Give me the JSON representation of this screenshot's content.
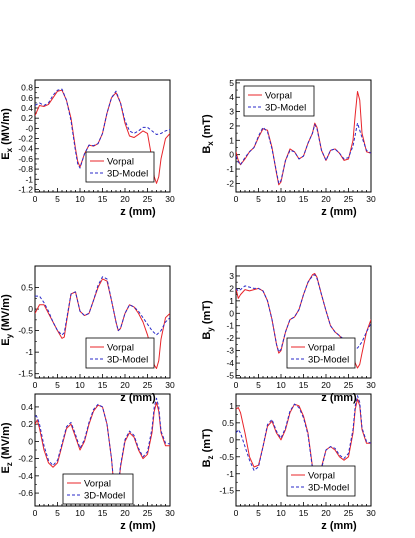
{
  "legend": {
    "series": [
      {
        "name": "Vorpal",
        "color": "#e8242a",
        "dash": "solid"
      },
      {
        "name": "3D-Model",
        "color": "#2a2ac8",
        "dash": "dashed"
      }
    ]
  },
  "chart_data": [
    {
      "type": "line",
      "xlabel": "z (mm)",
      "ylabel": "E_x (MV/m)",
      "ylabel_main": "E",
      "ylabel_sub": "x",
      "ylabel_unit": " (MV/m)",
      "xlim": [
        0,
        30
      ],
      "ylim": [
        -1.25,
        0.95
      ],
      "xticks": [
        0,
        5,
        10,
        15,
        20,
        25,
        30
      ],
      "yticks": [
        -1.2,
        -1,
        -0.8,
        -0.6,
        -0.4,
        -0.2,
        0,
        0.2,
        0.4,
        0.6,
        0.8
      ],
      "ytick_labels": [
        "-1.2",
        "-1",
        "-0.8",
        "-0.6",
        "-0.4",
        "-0.2",
        "-0",
        "0.2",
        "0.4",
        "0.6",
        "0.8"
      ],
      "legend_position": "bottom-right",
      "series": [
        {
          "name": "Vorpal",
          "x": [
            0,
            1,
            2,
            3,
            4,
            5,
            6,
            7,
            8,
            9,
            9.5,
            10,
            11,
            12,
            13,
            14,
            15,
            16,
            17,
            18,
            19,
            20,
            21,
            22,
            23,
            24,
            25,
            26,
            26.5,
            27,
            27.5,
            28,
            29,
            30
          ],
          "y": [
            0.25,
            0.45,
            0.43,
            0.47,
            0.6,
            0.73,
            0.75,
            0.55,
            0.2,
            -0.4,
            -0.65,
            -0.76,
            -0.5,
            -0.33,
            -0.35,
            -0.3,
            -0.1,
            0.3,
            0.6,
            0.7,
            0.5,
            0.1,
            -0.15,
            -0.18,
            -0.12,
            -0.05,
            -0.1,
            -0.6,
            -0.95,
            -1.08,
            -0.95,
            -0.6,
            -0.2,
            -0.1
          ]
        },
        {
          "name": "3D-Model",
          "x": [
            0,
            1,
            2,
            3,
            4,
            5,
            6,
            7,
            8,
            9,
            9.5,
            10,
            11,
            12,
            13,
            14,
            15,
            16,
            17,
            18,
            19,
            20,
            21,
            22,
            23,
            24,
            25,
            26,
            27,
            28,
            29,
            30
          ],
          "y": [
            0.45,
            0.5,
            0.45,
            0.5,
            0.65,
            0.75,
            0.77,
            0.55,
            0.15,
            -0.45,
            -0.7,
            -0.78,
            -0.5,
            -0.33,
            -0.34,
            -0.3,
            -0.1,
            0.3,
            0.6,
            0.73,
            0.5,
            0.15,
            -0.05,
            -0.1,
            -0.05,
            0.02,
            0.02,
            -0.05,
            -0.12,
            -0.1,
            -0.05,
            -0.02
          ]
        }
      ]
    },
    {
      "type": "line",
      "xlabel": "z (mm)",
      "ylabel": "B_x (mT)",
      "ylabel_main": "B",
      "ylabel_sub": "x",
      "ylabel_unit": " (mT)",
      "xlim": [
        0,
        30
      ],
      "ylim": [
        -2.6,
        5.2
      ],
      "xticks": [
        0,
        5,
        10,
        15,
        20,
        25,
        30
      ],
      "yticks": [
        -2,
        -1,
        0,
        1,
        2,
        3,
        4,
        5
      ],
      "ytick_labels": [
        "-2",
        "-1",
        "0",
        "1",
        "2",
        "3",
        "4",
        "5"
      ],
      "legend_position": "top-left",
      "series": [
        {
          "name": "Vorpal",
          "x": [
            0,
            0.5,
            1,
            2,
            3,
            4,
            5,
            6,
            7,
            8,
            9,
            9.5,
            10,
            11,
            12,
            13,
            14,
            15,
            16,
            17,
            17.5,
            18,
            19,
            20,
            21,
            22,
            23,
            24,
            25,
            26,
            26.5,
            27,
            27.5,
            28,
            29,
            30
          ],
          "y": [
            0.2,
            -0.4,
            -0.7,
            -0.3,
            0.2,
            0.5,
            1.2,
            1.8,
            1.7,
            0.5,
            -1.3,
            -2.1,
            -1.9,
            -0.4,
            0.4,
            0.2,
            -0.3,
            -0.1,
            0.8,
            1.5,
            2.2,
            1.9,
            0.3,
            -0.4,
            0.3,
            0.4,
            0.1,
            -0.4,
            -0.3,
            1.0,
            2.8,
            4.4,
            3.8,
            1.5,
            0.2,
            0.1
          ]
        },
        {
          "name": "3D-Model",
          "x": [
            0,
            0.5,
            1,
            2,
            3,
            4,
            5,
            6,
            7,
            8,
            9,
            9.5,
            10,
            11,
            12,
            13,
            14,
            15,
            16,
            17,
            17.5,
            18,
            19,
            20,
            21,
            22,
            23,
            24,
            25,
            26,
            27,
            28,
            29,
            30
          ],
          "y": [
            -0.1,
            -0.5,
            -0.7,
            -0.2,
            0.2,
            0.5,
            1.3,
            1.9,
            1.6,
            0.4,
            -1.2,
            -2.0,
            -1.8,
            -0.4,
            0.3,
            0.2,
            -0.3,
            -0.1,
            0.8,
            1.5,
            2.1,
            1.8,
            0.3,
            -0.4,
            0.3,
            0.4,
            0.1,
            -0.3,
            -0.2,
            0.6,
            2.2,
            1.2,
            0.3,
            0.1
          ]
        }
      ]
    },
    {
      "type": "line",
      "xlabel": "z (mm)",
      "ylabel": "E_y (MV/m)",
      "ylabel_main": "E",
      "ylabel_sub": "y",
      "ylabel_unit": " (MV/m)",
      "xlim": [
        0,
        30
      ],
      "ylim": [
        -1.6,
        1.0
      ],
      "xticks": [
        0,
        5,
        10,
        15,
        20,
        25,
        30
      ],
      "yticks": [
        -1.5,
        -1,
        -0.5,
        0,
        0.5
      ],
      "ytick_labels": [
        "-1.5",
        "-1",
        "-0.5",
        "0",
        "0.5"
      ],
      "legend_position": "bottom-right",
      "series": [
        {
          "name": "Vorpal",
          "x": [
            0,
            1,
            2,
            3,
            4,
            5,
            6,
            6.5,
            7,
            8,
            9,
            10,
            11,
            12,
            13,
            14,
            15,
            16,
            17,
            18,
            18.5,
            19,
            20,
            21,
            22,
            23,
            24,
            25,
            26,
            26.5,
            27,
            27.5,
            28,
            29,
            30
          ],
          "y": [
            -0.1,
            0.1,
            0.1,
            -0.1,
            -0.3,
            -0.5,
            -0.68,
            -0.65,
            -0.3,
            0.35,
            0.4,
            -0.05,
            -0.15,
            -0.1,
            0.2,
            0.5,
            0.7,
            0.65,
            0.2,
            -0.3,
            -0.5,
            -0.45,
            -0.1,
            0.1,
            0.05,
            -0.1,
            -0.3,
            -0.6,
            -1.0,
            -1.3,
            -1.38,
            -1.2,
            -0.7,
            -0.2,
            -0.1
          ]
        },
        {
          "name": "3D-Model",
          "x": [
            0,
            1,
            2,
            3,
            4,
            5,
            6,
            6.5,
            7,
            8,
            9,
            10,
            11,
            12,
            13,
            14,
            15,
            16,
            17,
            18,
            18.5,
            19,
            20,
            21,
            22,
            23,
            24,
            25,
            26,
            27,
            28,
            29,
            30
          ],
          "y": [
            0.3,
            0.3,
            0.15,
            -0.05,
            -0.3,
            -0.5,
            -0.6,
            -0.55,
            -0.25,
            0.35,
            0.4,
            -0.05,
            -0.15,
            -0.1,
            0.2,
            0.55,
            0.75,
            0.7,
            0.2,
            -0.3,
            -0.5,
            -0.45,
            -0.1,
            0.1,
            0.05,
            -0.05,
            -0.2,
            -0.35,
            -0.5,
            -0.6,
            -0.5,
            -0.3,
            -0.2
          ]
        }
      ]
    },
    {
      "type": "line",
      "xlabel": "z (mm)",
      "ylabel": "B_y (mT)",
      "ylabel_main": "B",
      "ylabel_sub": "y",
      "ylabel_unit": " (mT)",
      "xlim": [
        0,
        30
      ],
      "ylim": [
        -5.2,
        3.8
      ],
      "xticks": [
        0,
        5,
        10,
        15,
        20,
        25,
        30
      ],
      "yticks": [
        -5,
        -4,
        -3,
        -2,
        -1,
        0,
        1,
        2,
        3
      ],
      "ytick_labels": [
        "-5",
        "-4",
        "-3",
        "-2",
        "-1",
        "0",
        "1",
        "2",
        "3"
      ],
      "legend_position": "bottom-right",
      "series": [
        {
          "name": "Vorpal",
          "x": [
            0,
            0.5,
            1,
            2,
            3,
            4,
            5,
            6,
            7,
            8,
            9,
            9.5,
            10,
            11,
            12,
            13,
            14,
            15,
            16,
            17,
            17.5,
            18,
            19,
            20,
            21,
            22,
            23,
            24,
            25,
            26,
            26.5,
            27,
            27.5,
            28,
            29,
            30
          ],
          "y": [
            2.0,
            1.2,
            1.5,
            1.9,
            1.8,
            1.9,
            2.0,
            1.8,
            1.0,
            -0.5,
            -2.5,
            -3.2,
            -3.0,
            -1.5,
            -0.5,
            -0.3,
            0.3,
            1.5,
            2.5,
            3.1,
            3.2,
            2.9,
            1.5,
            0.2,
            -1.0,
            -1.5,
            -1.8,
            -2.3,
            -2.7,
            -3.4,
            -4.0,
            -4.4,
            -4.1,
            -3.2,
            -1.5,
            -0.5
          ]
        },
        {
          "name": "3D-Model",
          "x": [
            0,
            0.5,
            1,
            2,
            3,
            4,
            5,
            6,
            7,
            8,
            9,
            9.5,
            10,
            11,
            12,
            13,
            14,
            15,
            16,
            17,
            17.5,
            18,
            19,
            20,
            21,
            22,
            23,
            24,
            25,
            26,
            27,
            28,
            29,
            30
          ],
          "y": [
            2.0,
            1.8,
            1.9,
            2.2,
            2.1,
            2.0,
            2.0,
            1.8,
            1.0,
            -0.5,
            -2.5,
            -3.1,
            -2.9,
            -1.5,
            -0.5,
            -0.3,
            0.3,
            1.5,
            2.5,
            3.0,
            3.1,
            2.8,
            1.5,
            0.2,
            -1.0,
            -1.5,
            -1.8,
            -2.1,
            -2.4,
            -2.7,
            -2.8,
            -2.3,
            -1.5,
            -0.8
          ]
        }
      ]
    },
    {
      "type": "line",
      "xlabel": "z (mm)",
      "ylabel": "E_z (MV/m)",
      "ylabel_main": "E",
      "ylabel_sub": "z",
      "ylabel_unit": " (MV/m)",
      "xlim": [
        0,
        30
      ],
      "ylim": [
        -0.75,
        0.55
      ],
      "xticks": [
        0,
        5,
        10,
        15,
        20,
        25,
        30
      ],
      "yticks": [
        -0.6,
        -0.4,
        -0.2,
        0,
        0.2,
        0.4
      ],
      "ytick_labels": [
        "-0.6",
        "-0.4",
        "-0.2",
        "0",
        "0.2",
        "0.4"
      ],
      "legend_position": "bottom-center",
      "series": [
        {
          "name": "Vorpal",
          "x": [
            0,
            0.5,
            1,
            2,
            3,
            4,
            5,
            6,
            7,
            8,
            9,
            10,
            11,
            12,
            13,
            14,
            15,
            16,
            17,
            17.5,
            18,
            18.5,
            19,
            20,
            21,
            22,
            23,
            24,
            25,
            26,
            26.5,
            27,
            27.5,
            28,
            29,
            30
          ],
          "y": [
            0.2,
            0.25,
            0.15,
            -0.1,
            -0.25,
            -0.3,
            -0.25,
            -0.05,
            0.15,
            0.2,
            0.05,
            -0.1,
            0.0,
            0.2,
            0.35,
            0.42,
            0.4,
            0.2,
            -0.2,
            -0.5,
            -0.6,
            -0.55,
            -0.3,
            0.0,
            0.1,
            0.05,
            -0.1,
            -0.2,
            -0.15,
            0.1,
            0.35,
            0.45,
            0.35,
            0.1,
            -0.05,
            -0.05
          ]
        },
        {
          "name": "3D-Model",
          "x": [
            0,
            0.5,
            1,
            2,
            3,
            4,
            5,
            6,
            7,
            8,
            9,
            10,
            11,
            12,
            13,
            14,
            15,
            16,
            17,
            17.5,
            18,
            18.5,
            19,
            20,
            21,
            22,
            23,
            24,
            25,
            26,
            26.5,
            27,
            27.5,
            28,
            29,
            30
          ],
          "y": [
            0.3,
            0.28,
            0.2,
            -0.05,
            -0.22,
            -0.28,
            -0.22,
            -0.03,
            0.17,
            0.22,
            0.08,
            -0.08,
            0.02,
            0.22,
            0.37,
            0.43,
            0.4,
            0.2,
            -0.2,
            -0.48,
            -0.58,
            -0.52,
            -0.28,
            0.02,
            0.12,
            0.07,
            -0.08,
            -0.18,
            -0.12,
            0.15,
            0.4,
            0.5,
            0.4,
            0.12,
            -0.02,
            -0.03
          ]
        }
      ]
    },
    {
      "type": "line",
      "xlabel": "z (mm)",
      "ylabel": "B_z (mT)",
      "ylabel_main": "B",
      "ylabel_sub": "z",
      "ylabel_unit": " (mT)",
      "xlim": [
        0,
        30
      ],
      "ylim": [
        -1.95,
        1.35
      ],
      "xticks": [
        0,
        5,
        10,
        15,
        20,
        25,
        30
      ],
      "yticks": [
        -1.5,
        -1,
        -0.5,
        0,
        0.5,
        1
      ],
      "ytick_labels": [
        "-1.5",
        "-1",
        "-0.5",
        "0",
        "0.5",
        "1"
      ],
      "legend_position": "bottom-right",
      "series": [
        {
          "name": "Vorpal",
          "x": [
            0,
            0.5,
            1,
            2,
            3,
            4,
            5,
            6,
            7,
            8,
            9,
            10,
            11,
            12,
            13,
            14,
            15,
            16,
            17,
            17.5,
            18,
            18.5,
            19,
            20,
            21,
            22,
            23,
            24,
            25,
            26,
            26.5,
            27,
            27.5,
            28,
            29,
            30
          ],
          "y": [
            0.9,
            0.95,
            0.8,
            0.2,
            -0.5,
            -0.8,
            -0.75,
            -0.2,
            0.4,
            0.55,
            0.2,
            0.0,
            0.3,
            0.8,
            1.05,
            1.0,
            0.7,
            0.2,
            -0.8,
            -1.4,
            -1.55,
            -1.4,
            -0.8,
            -0.3,
            -0.2,
            -0.3,
            -0.5,
            -0.6,
            -0.5,
            0.2,
            0.9,
            1.2,
            1.0,
            0.3,
            -0.1,
            -0.1
          ]
        },
        {
          "name": "3D-Model",
          "x": [
            0,
            0.5,
            1,
            2,
            3,
            4,
            5,
            6,
            7,
            8,
            9,
            10,
            11,
            12,
            13,
            14,
            15,
            16,
            17,
            17.5,
            18,
            18.5,
            19,
            20,
            21,
            22,
            23,
            24,
            25,
            26,
            26.5,
            27,
            27.5,
            28,
            29,
            30
          ],
          "y": [
            0.2,
            0.3,
            0.2,
            -0.2,
            -0.6,
            -0.9,
            -0.8,
            -0.2,
            0.45,
            0.6,
            0.25,
            0.05,
            0.35,
            0.85,
            1.05,
            0.95,
            0.65,
            0.15,
            -0.85,
            -1.45,
            -1.6,
            -1.45,
            -0.85,
            -0.3,
            -0.2,
            -0.25,
            -0.45,
            -0.55,
            -0.4,
            0.3,
            1.0,
            1.3,
            1.1,
            0.35,
            -0.05,
            -0.1
          ]
        }
      ]
    }
  ]
}
